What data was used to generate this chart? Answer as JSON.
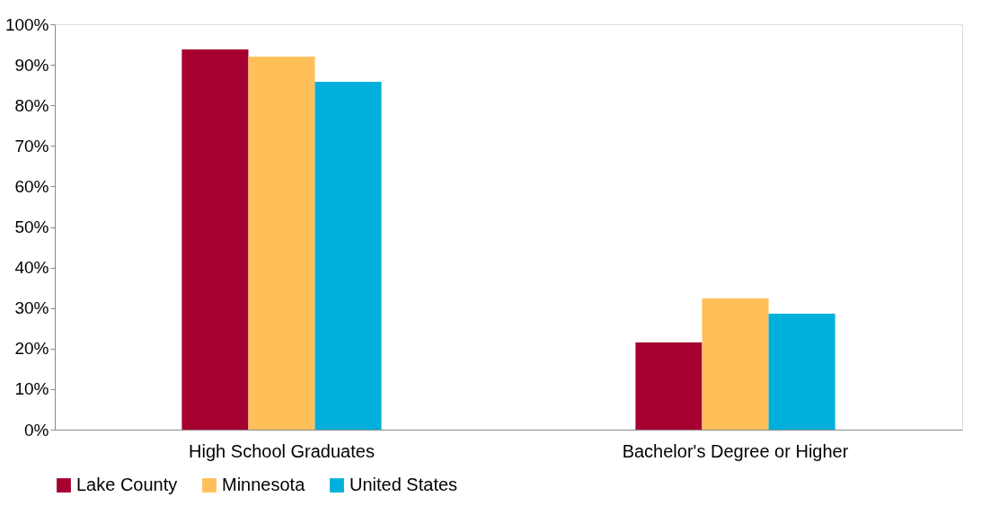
{
  "chart_data": {
    "type": "bar",
    "categories": [
      "High School Graduates",
      "Bachelor's Degree or Higher"
    ],
    "series": [
      {
        "name": "Lake County",
        "color": "#a50030",
        "values": [
          93.8,
          21.5
        ]
      },
      {
        "name": "Minnesota",
        "color": "#ffc05a",
        "values": [
          92.0,
          32.4
        ]
      },
      {
        "name": "United States",
        "color": "#00b0da",
        "values": [
          85.8,
          28.6
        ]
      }
    ],
    "ylim": [
      0,
      100
    ],
    "yticks": [
      {
        "value": 0,
        "label": "0%"
      },
      {
        "value": 10,
        "label": "10%"
      },
      {
        "value": 20,
        "label": "20%"
      },
      {
        "value": 30,
        "label": "30%"
      },
      {
        "value": 40,
        "label": "40%"
      },
      {
        "value": 50,
        "label": "50%"
      },
      {
        "value": 60,
        "label": "60%"
      },
      {
        "value": 70,
        "label": "70%"
      },
      {
        "value": 80,
        "label": "80%"
      },
      {
        "value": 90,
        "label": "90%"
      },
      {
        "value": 100,
        "label": "100%"
      }
    ],
    "grid": false,
    "legend": "bottom"
  }
}
